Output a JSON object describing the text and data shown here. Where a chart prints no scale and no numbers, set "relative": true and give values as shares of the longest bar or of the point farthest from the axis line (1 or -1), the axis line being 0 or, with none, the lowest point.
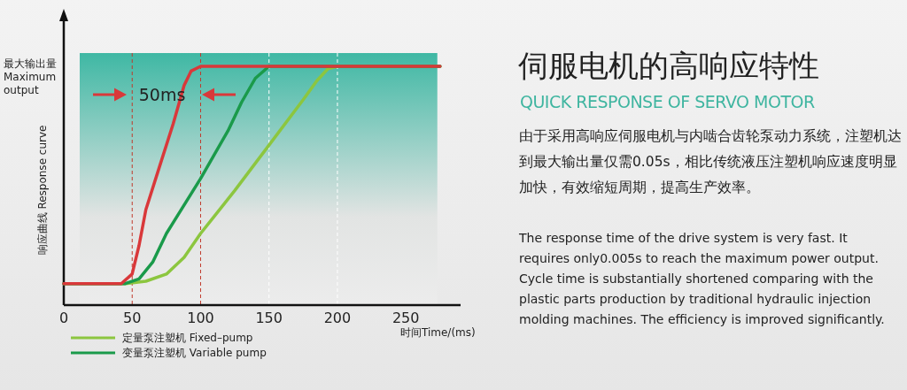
{
  "chart_data": {
    "type": "line",
    "title": "伺服电机的高响应特性",
    "subtitle": "QUICK RESPONSE OF SERVO MOTOR",
    "xlabel": "时间Time/(ms)",
    "ylabel": "响应曲线 Response curve",
    "relative": true,
    "xlim": [
      0,
      290
    ],
    "xticks": [
      0,
      50,
      100,
      150,
      200,
      250
    ],
    "legend": "bottom",
    "series": [
      {
        "name": "定量泵注塑机 Fixed–pump",
        "color": "#8cc63f",
        "x": [
          0,
          45,
          60,
          75,
          88,
          100,
          125,
          150,
          175,
          185,
          193,
          200,
          275
        ],
        "values": [
          0.09,
          0.09,
          0.1,
          0.13,
          0.2,
          0.3,
          0.48,
          0.67,
          0.86,
          0.94,
          0.99,
          1,
          1
        ]
      },
      {
        "name": "变量泵注塑机 Variable pump",
        "color": "#1a9a4a",
        "x": [
          0,
          45,
          55,
          65,
          75,
          100,
          120,
          130,
          140,
          150,
          275
        ],
        "values": [
          0.09,
          0.09,
          0.11,
          0.18,
          0.3,
          0.53,
          0.73,
          0.85,
          0.95,
          1,
          1
        ]
      },
      {
        "color": "#d9383a",
        "x": [
          0,
          42,
          50,
          55,
          60,
          70,
          80,
          88,
          93,
          100,
          275
        ],
        "values": [
          0.09,
          0.09,
          0.13,
          0.25,
          0.4,
          0.58,
          0.76,
          0.92,
          0.98,
          1,
          1
        ]
      }
    ],
    "ref_lines": [
      {
        "axis": "x",
        "value": 50,
        "color": "#c0392b",
        "line_style": "dashed"
      },
      {
        "axis": "x",
        "value": 100,
        "color": "#c0392b",
        "line_style": "dashed"
      },
      {
        "axis": "x",
        "value": 150,
        "color": "#ffffff",
        "line_style": "dashed"
      },
      {
        "axis": "x",
        "value": 200,
        "color": "#ffffff",
        "line_style": "dashed"
      }
    ],
    "annotations": [
      "最大输出量\nMaximum\noutput",
      "50ms",
      "由于采用高响应伺服电机与内啮合齿轮泵动力系统，注塑机达到最大输出量仅需0.05s，相比传统液压注塑机响应速度明显加快，有效缩短周期，提高生产效率。",
      "The response time of the drive system is very fast. It requires only0.005s to reach the maximum power output. Cycle time is substantially shortened comparing with the plastic parts production by traditional hydraulic injection molding machines. The efficiency is improved significantly."
    ]
  }
}
